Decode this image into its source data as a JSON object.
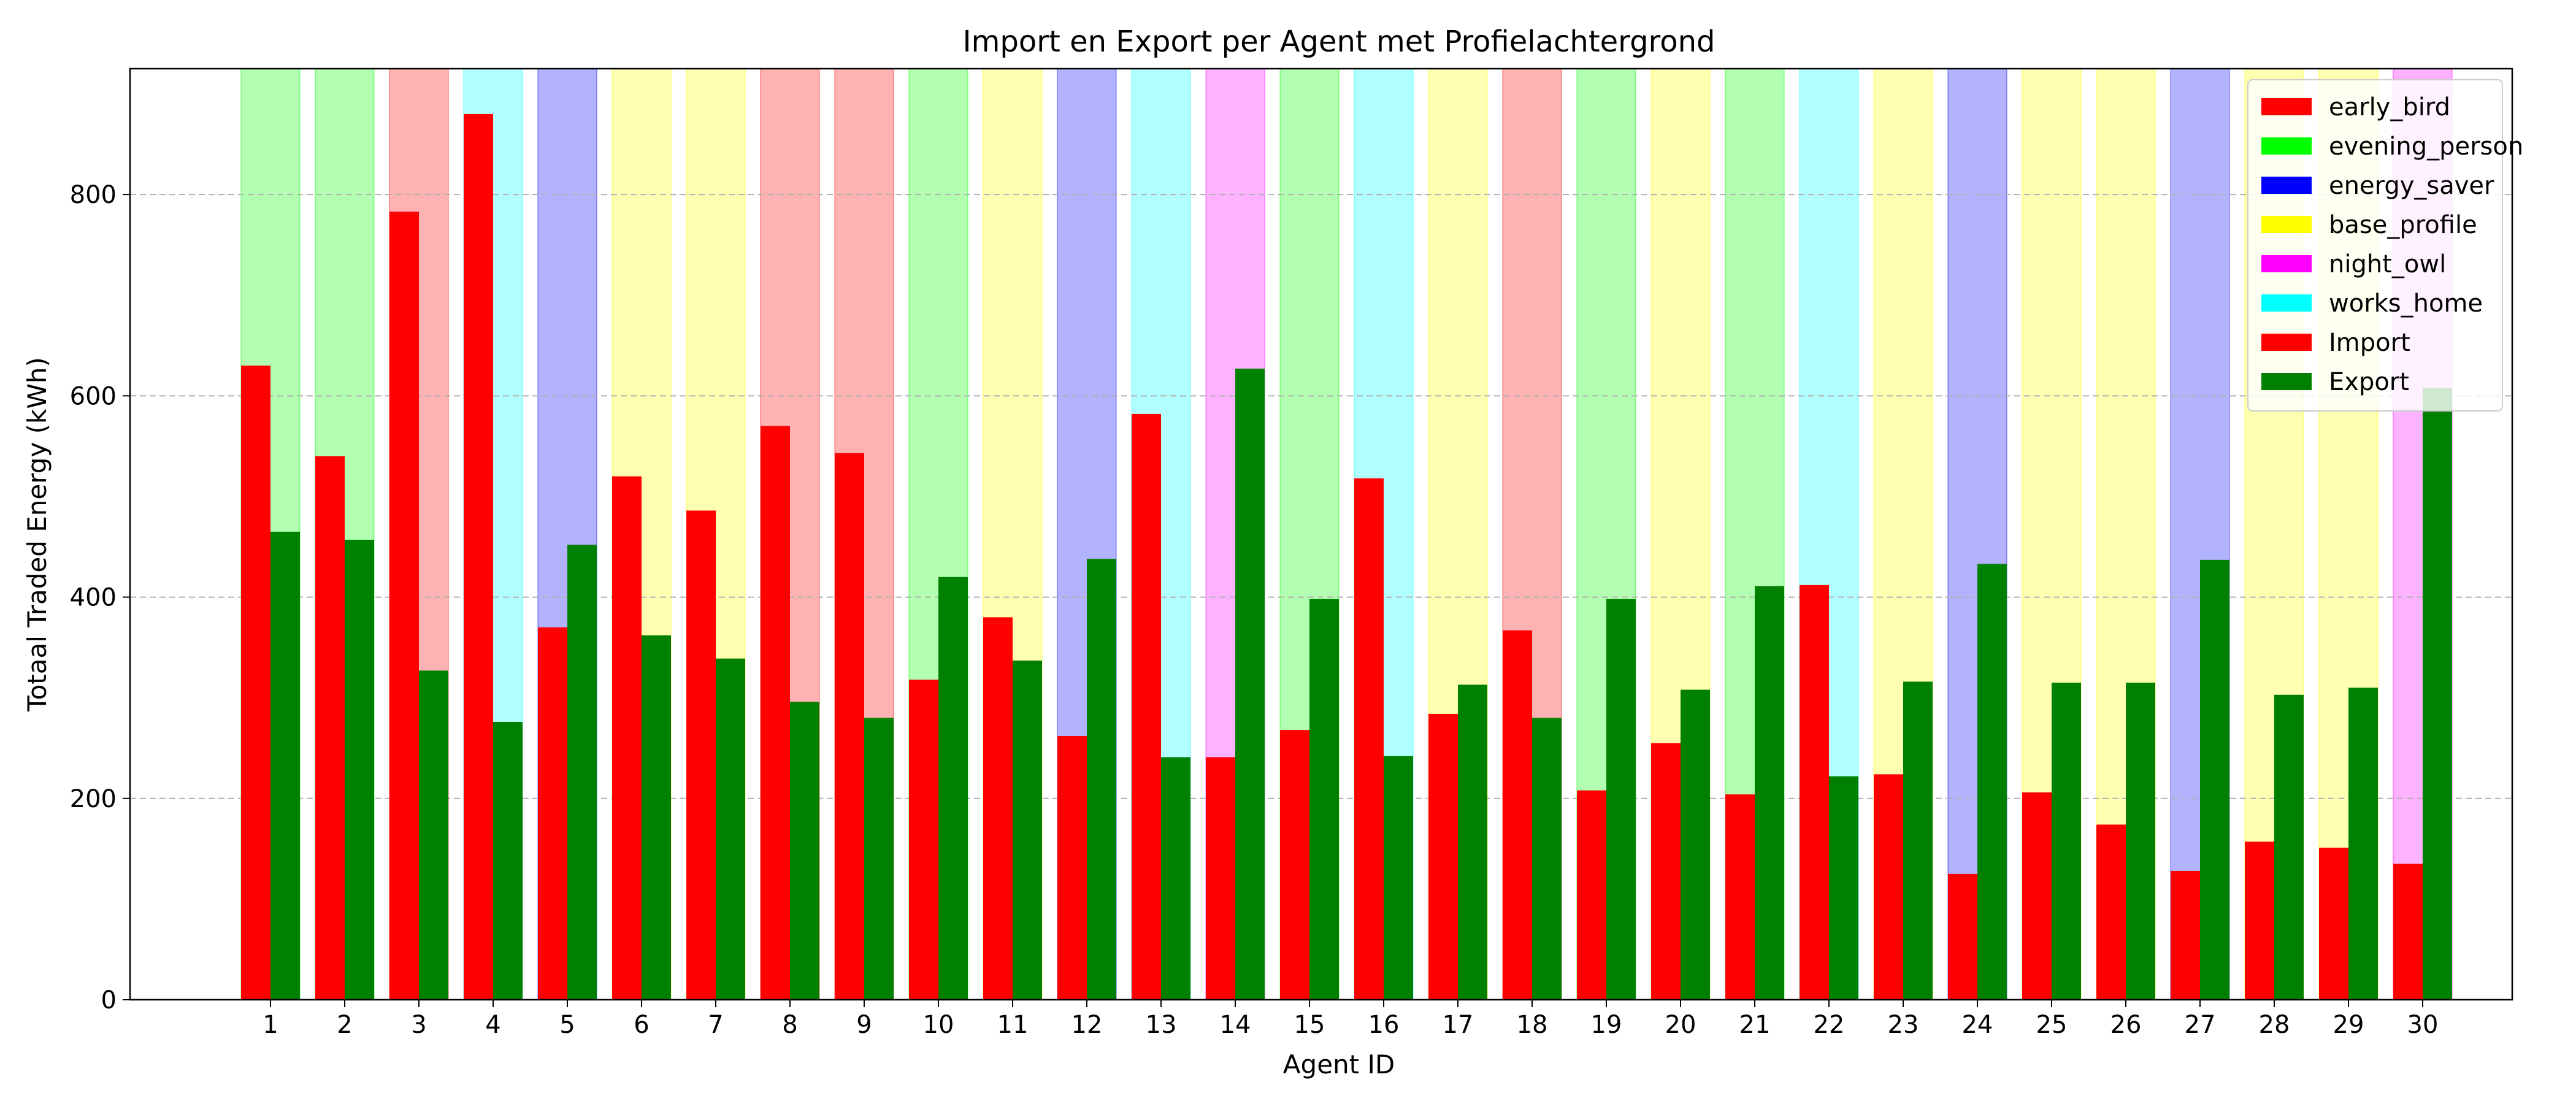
{
  "chart_data": {
    "type": "bar",
    "title": "Import en Export per Agent met Profielachtergrond",
    "xlabel": "Agent ID",
    "ylabel": "Totaal Traded Energy (kWh)",
    "ylim": [
      0,
      925
    ],
    "yticks": [
      0,
      200,
      400,
      600,
      800
    ],
    "grid": "horizontal dashed",
    "legend_position": "top-right",
    "categories": [
      "1",
      "2",
      "3",
      "4",
      "5",
      "6",
      "7",
      "8",
      "9",
      "10",
      "11",
      "12",
      "13",
      "14",
      "15",
      "16",
      "17",
      "18",
      "19",
      "20",
      "21",
      "22",
      "23",
      "24",
      "25",
      "26",
      "27",
      "28",
      "29",
      "30"
    ],
    "profile_colors": {
      "early_bird": "#ff0000",
      "evening_person": "#00ff00",
      "energy_saver": "#0000ff",
      "base_profile": "#ffff00",
      "night_owl": "#ff00ff",
      "works_home": "#00ffff"
    },
    "agent_profiles": [
      "evening_person",
      "evening_person",
      "early_bird",
      "works_home",
      "energy_saver",
      "base_profile",
      "base_profile",
      "early_bird",
      "early_bird",
      "evening_person",
      "base_profile",
      "energy_saver",
      "works_home",
      "night_owl",
      "evening_person",
      "works_home",
      "base_profile",
      "early_bird",
      "evening_person",
      "base_profile",
      "evening_person",
      "works_home",
      "base_profile",
      "energy_saver",
      "base_profile",
      "base_profile",
      "energy_saver",
      "base_profile",
      "base_profile",
      "night_owl"
    ],
    "series": [
      {
        "name": "Import",
        "color": "#ff0000",
        "values": [
          630,
          540,
          783,
          880,
          370,
          520,
          486,
          570,
          543,
          318,
          380,
          262,
          582,
          241,
          268,
          518,
          284,
          367,
          208,
          255,
          204,
          412,
          224,
          125,
          206,
          174,
          128,
          157,
          151,
          135
        ]
      },
      {
        "name": "Export",
        "color": "#008000",
        "values": [
          465,
          457,
          327,
          276,
          452,
          362,
          339,
          296,
          280,
          420,
          337,
          438,
          241,
          627,
          398,
          242,
          313,
          280,
          398,
          308,
          411,
          222,
          316,
          433,
          315,
          315,
          437,
          303,
          310,
          608
        ]
      }
    ],
    "legend": [
      "early_bird",
      "evening_person",
      "energy_saver",
      "base_profile",
      "night_owl",
      "works_home",
      "Import",
      "Export"
    ]
  }
}
